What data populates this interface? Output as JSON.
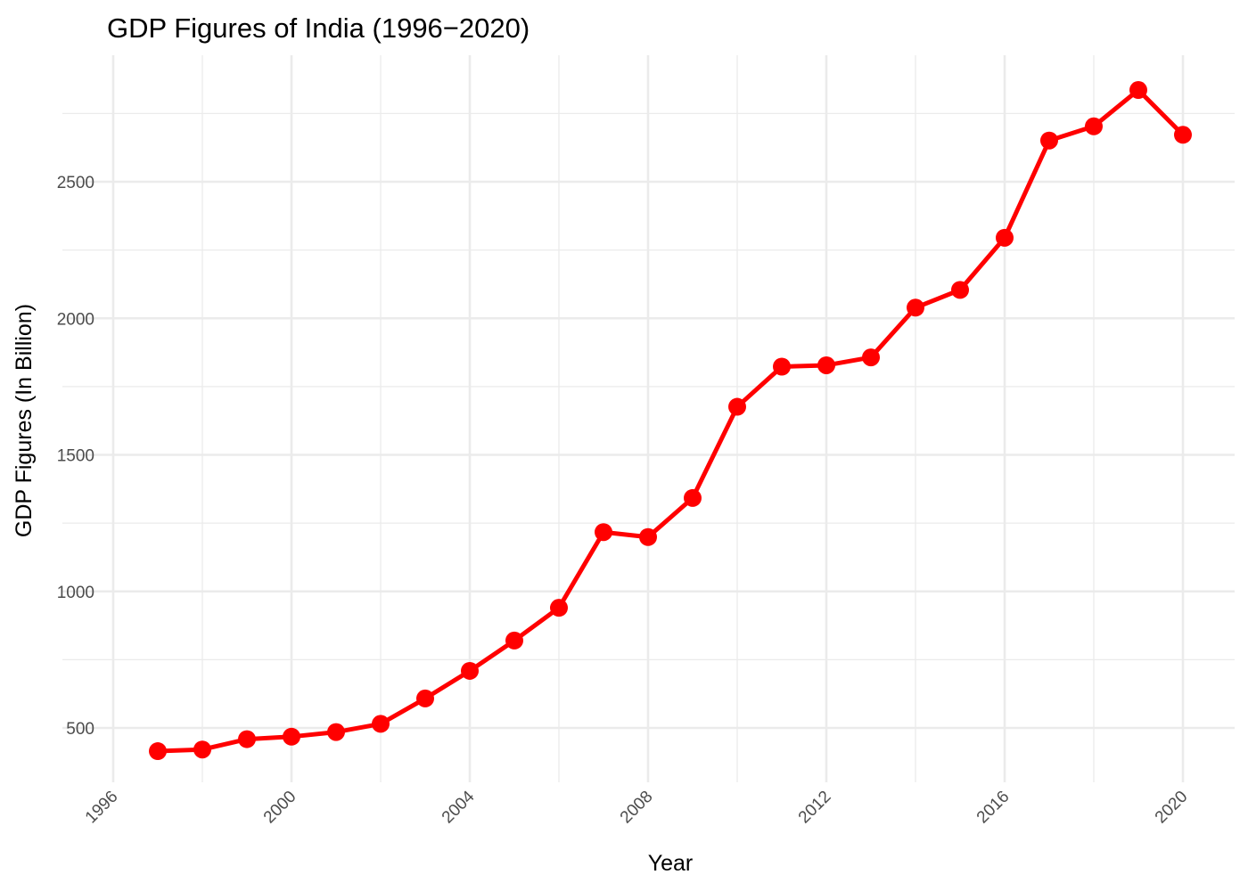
{
  "chart_data": {
    "type": "line",
    "title": "GDP Figures of India (1996−2020)",
    "xlabel": "Year",
    "ylabel": "GDP Figures (In Billion)",
    "x": [
      1997,
      1998,
      1999,
      2000,
      2001,
      2002,
      2003,
      2004,
      2005,
      2006,
      2007,
      2008,
      2009,
      2010,
      2011,
      2012,
      2013,
      2014,
      2015,
      2016,
      2017,
      2018,
      2019,
      2020
    ],
    "series": [
      {
        "values": [
          415,
          421,
          459,
          468,
          485,
          515,
          608,
          709,
          820,
          940,
          1217,
          1199,
          1342,
          1676,
          1823,
          1828,
          1857,
          2039,
          2104,
          2295,
          2651,
          2703,
          2836,
          2672
        ],
        "color": "#ff0000",
        "marker": "circle"
      }
    ],
    "xlim": [
      1996,
      2020
    ],
    "ylim": [
      500,
      2500
    ],
    "x_ticks": [
      "1996",
      "2000",
      "2004",
      "2008",
      "2012",
      "2016",
      "2020"
    ],
    "y_ticks": [
      "500",
      "1000",
      "1500",
      "2000",
      "2500"
    ],
    "grid": true,
    "theme": "minimal"
  }
}
